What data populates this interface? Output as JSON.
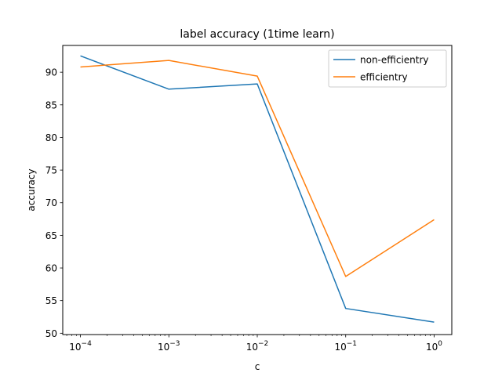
{
  "chart_data": {
    "type": "line",
    "title": "label accuracy (1time learn)",
    "xlabel": "c",
    "ylabel": "accuracy",
    "x_scale": "log",
    "x": [
      0.0001,
      0.001,
      0.01,
      0.1,
      1
    ],
    "x_tick_labels": [
      {
        "base": "10",
        "exp": "−4"
      },
      {
        "base": "10",
        "exp": "−3"
      },
      {
        "base": "10",
        "exp": "−2"
      },
      {
        "base": "10",
        "exp": "−1"
      },
      {
        "base": "10",
        "exp": "0"
      }
    ],
    "y_ticks": [
      50,
      55,
      60,
      65,
      70,
      75,
      80,
      85,
      90
    ],
    "y_tick_labels": [
      "50",
      "55",
      "60",
      "65",
      "70",
      "75",
      "80",
      "85",
      "90"
    ],
    "ylim": [
      49.8,
      94.1
    ],
    "grid": false,
    "legend_position": "top-right",
    "series": [
      {
        "name": "non-efficientry",
        "color": "#1f77b4",
        "values": [
          92.5,
          87.4,
          88.2,
          53.8,
          51.7
        ]
      },
      {
        "name": "efficientry",
        "color": "#ff7f0e",
        "values": [
          90.8,
          91.8,
          89.4,
          58.7,
          67.4
        ]
      }
    ]
  }
}
